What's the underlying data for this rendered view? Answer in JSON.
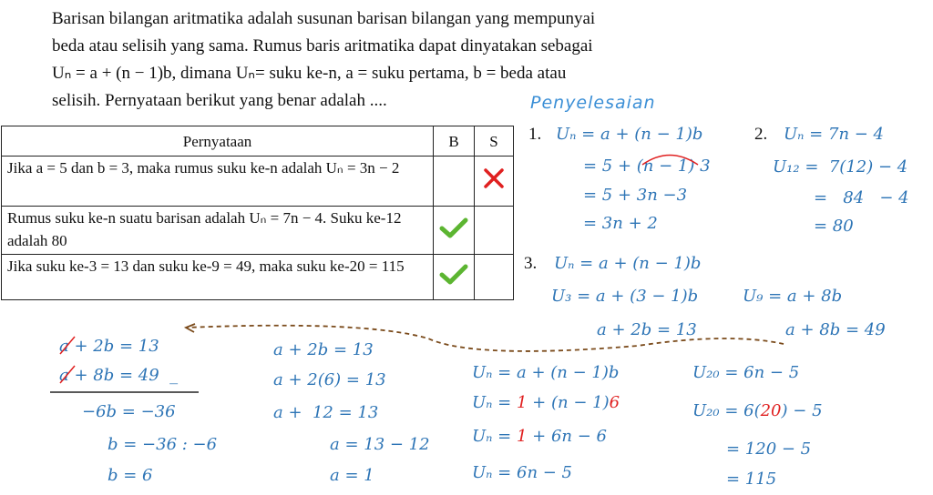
{
  "paragraph": [
    "Barisan bilangan aritmatika adalah susunan barisan bilangan yang mempunyai",
    "beda atau selisih yang sama. Rumus baris aritmatika dapat dinyatakan sebagai",
    "Uₙ = a + (n − 1)b, dimana Uₙ= suku ke-n, a = suku pertama, b = beda atau",
    "selisih. Pernyataan berikut yang benar adalah ...."
  ],
  "heading": "Penyelesaian",
  "table": {
    "header": [
      "Pernyataan",
      "B",
      "S"
    ],
    "rows": [
      "Jika a = 5 dan b = 3, maka rumus suku ke-n adalah Uₙ = 3n − 2",
      "Rumus suku ke-n suatu barisan adalah Uₙ = 7n − 4. Suku ke-12 adalah 80",
      "Jika suku ke-3 = 13 dan suku ke-9 = 49, maka suku ke-20 = 115"
    ]
  },
  "numbers": [
    "1.",
    "2.",
    "3."
  ],
  "steps": [
    [
      "Uₙ = a + (n − 1)b"
    ],
    [
      "= 5 + (n − 1) 3"
    ],
    [
      "= 5 + 3n −3"
    ],
    [
      "= 3n + 2"
    ],
    [
      "Uₙ = 7n − 4"
    ],
    [
      "U₁₂ =  7(12) − 4"
    ],
    [
      "=   84   − 4"
    ],
    [
      "= 80"
    ],
    [
      "Uₙ = a + (n − 1)b"
    ],
    [
      "U₃ = a + (3 − 1)b"
    ],
    [
      "U₉ = a + 8b"
    ],
    [
      "a + 2b = 13"
    ],
    [
      "a + 8b = 49"
    ],
    [
      "a + 2b = 13"
    ],
    [
      "a + 8b = 49  _"
    ],
    [
      "−6b = −36"
    ],
    [
      "b = −36 : −6"
    ],
    [
      "b = 6"
    ],
    [
      "a + 2b = 13"
    ],
    [
      "a + 2(6) = 13"
    ],
    [
      "a +  12 = 13"
    ],
    [
      "a = 13 − 12"
    ],
    [
      "a = 1"
    ],
    [
      "Uₙ = a + (n − 1)b"
    ],
    [
      "Uₙ = ",
      "1",
      " + (n − 1)",
      "6"
    ],
    [
      "Uₙ = ",
      "1",
      " + 6n − 6"
    ],
    [
      "Uₙ = 6n − 5"
    ],
    [
      "U₂₀ = 6n − 5"
    ],
    [
      "U₂₀ = 6(",
      "20",
      ") − 5"
    ],
    [
      "= 120 − 5"
    ],
    [
      "= 115"
    ]
  ]
}
